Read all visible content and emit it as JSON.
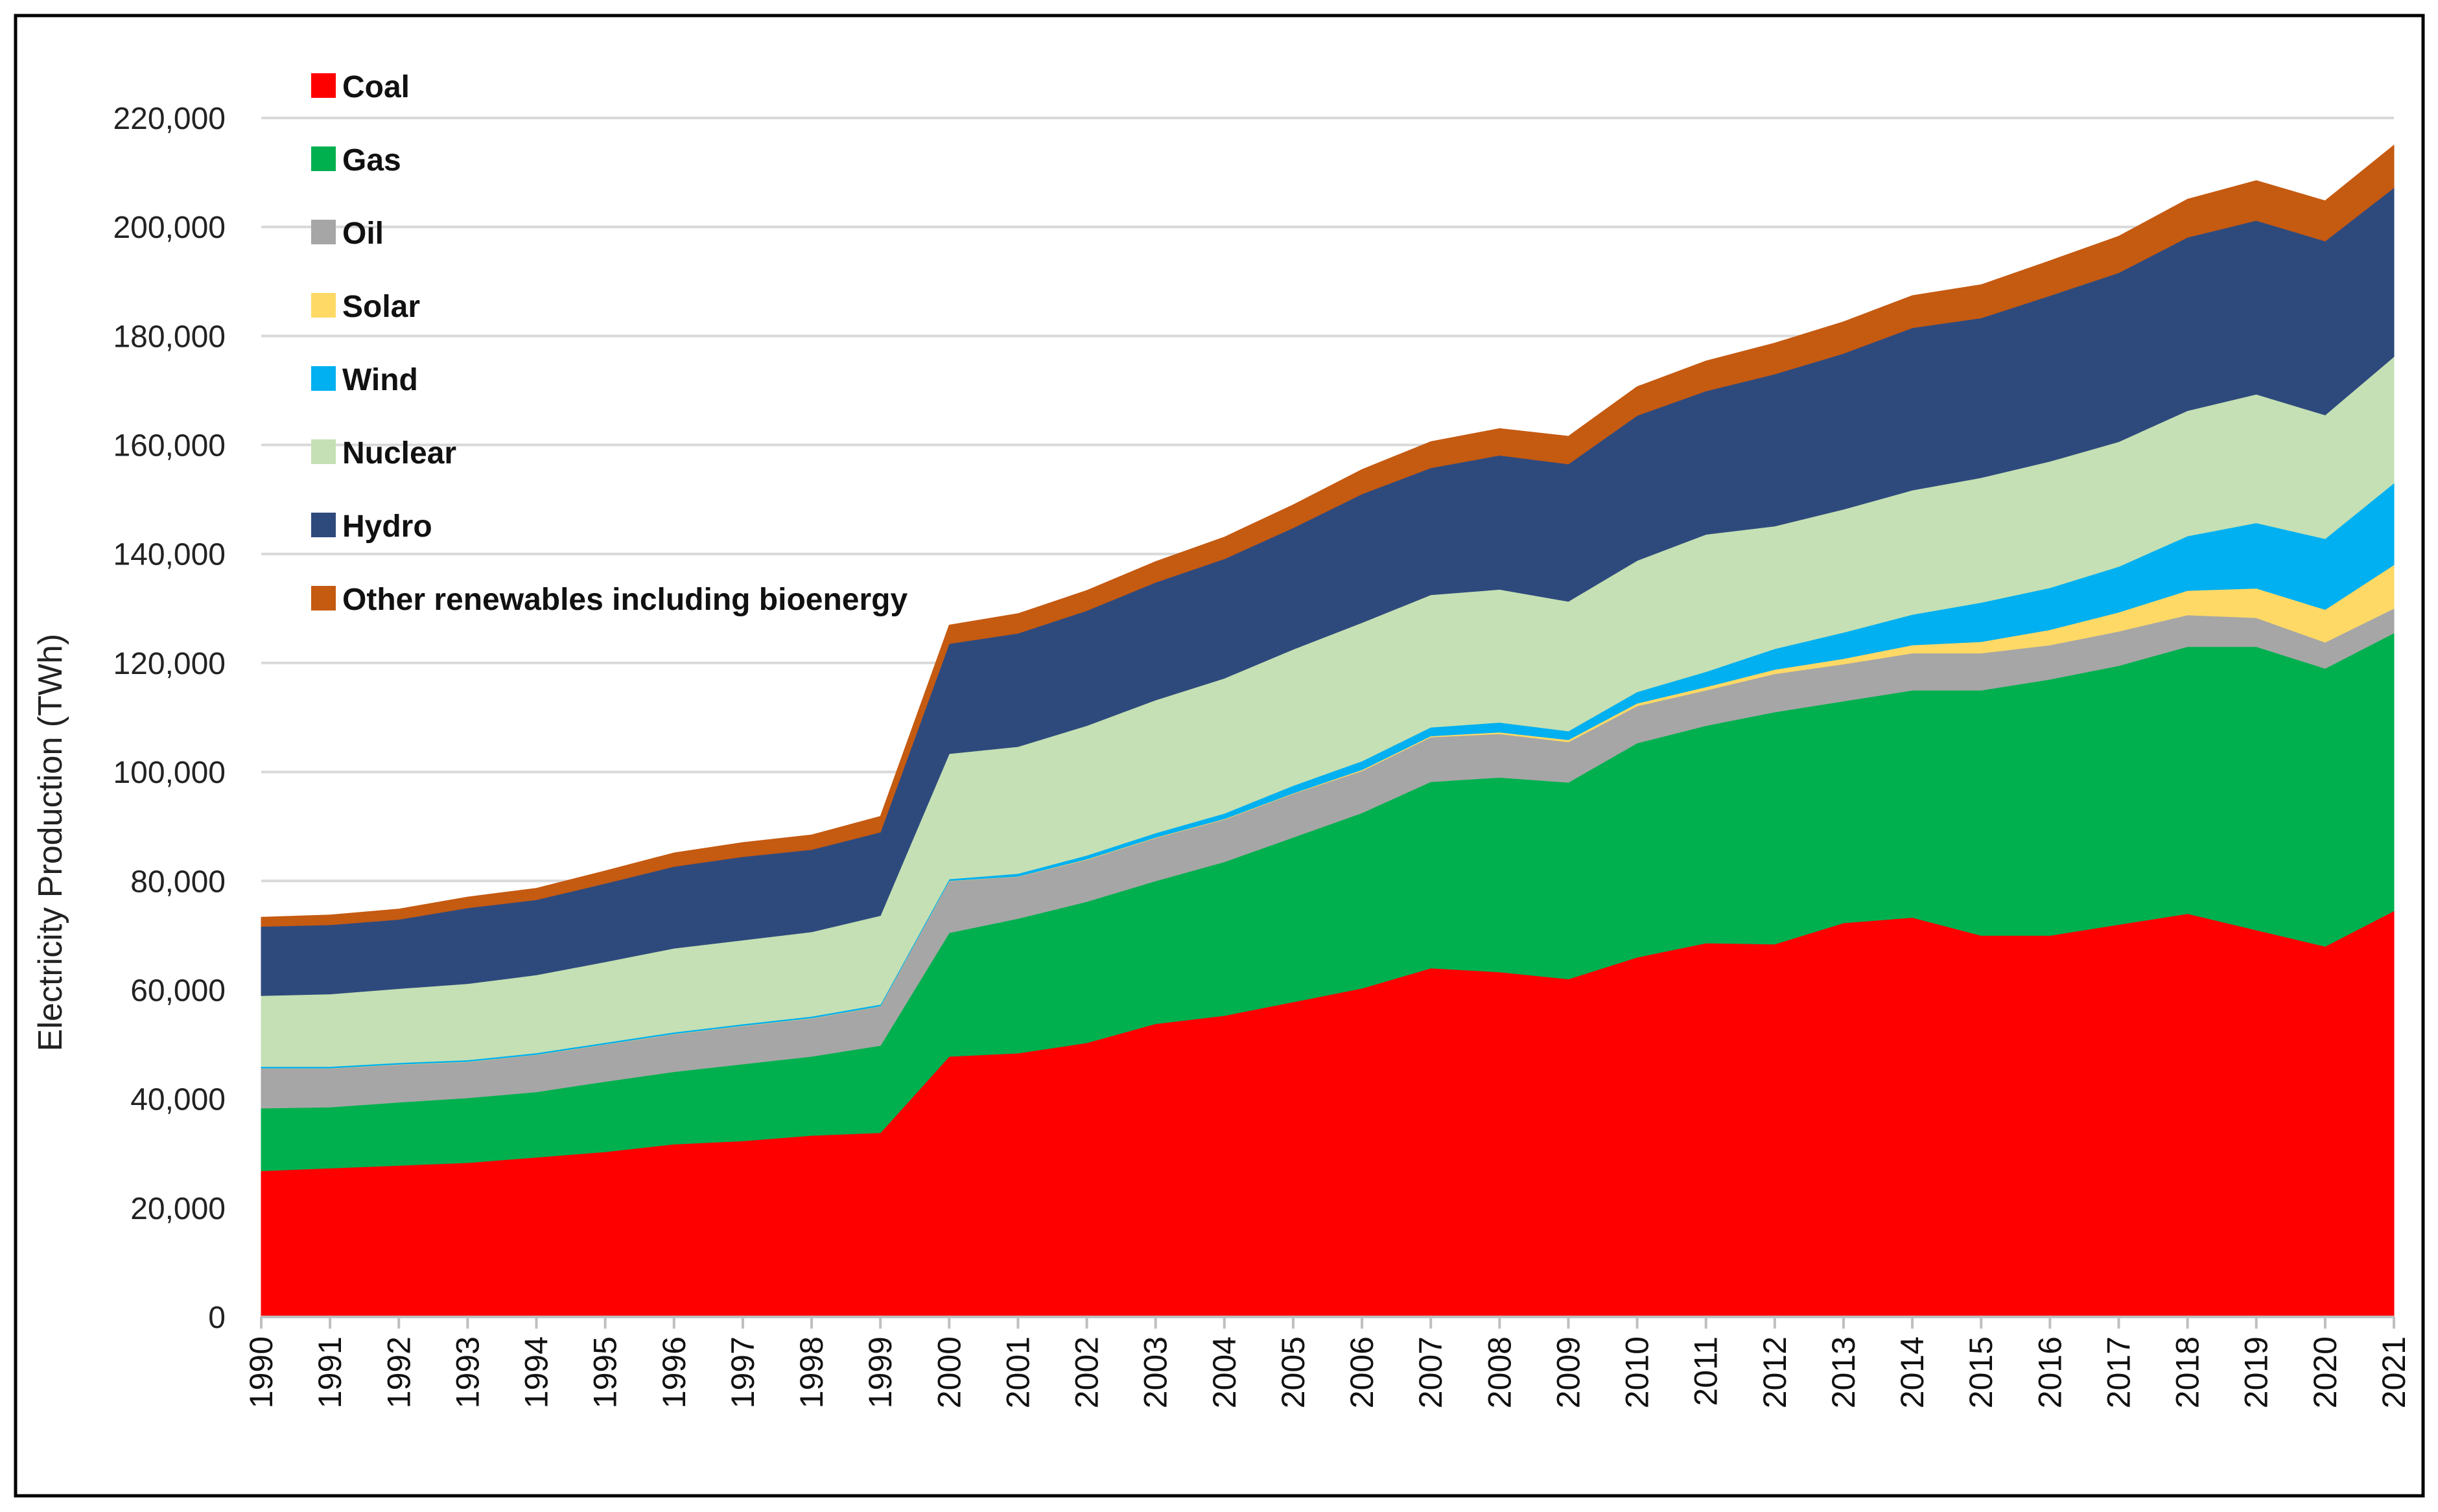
{
  "chart_data": {
    "type": "area",
    "stacked": true,
    "title": "",
    "xlabel": "",
    "ylabel": "Electricity Production (TWh)",
    "ylim": [
      0,
      220000
    ],
    "yticks": [
      0,
      20000,
      40000,
      60000,
      80000,
      100000,
      120000,
      140000,
      160000,
      180000,
      200000,
      220000
    ],
    "ytick_labels": [
      "0",
      "20,000",
      "40,000",
      "60,000",
      "80,000",
      "100,000",
      "120,000",
      "140,000",
      "160,000",
      "180,000",
      "200,000",
      "220,000"
    ],
    "grid": "horizontal",
    "legend_position": "top-left",
    "categories": [
      "1990",
      "1991",
      "1992",
      "1993",
      "1994",
      "1995",
      "1996",
      "1997",
      "1998",
      "1999",
      "2000",
      "2001",
      "2002",
      "2003",
      "2004",
      "2005",
      "2006",
      "2007",
      "2008",
      "2009",
      "2010",
      "2011",
      "2012",
      "2013",
      "2014",
      "2015",
      "2016",
      "2017",
      "2018",
      "2019",
      "2020",
      "2021"
    ],
    "series": [
      {
        "name": "Coal",
        "color": "#ff0000",
        "values": [
          26800,
          27300,
          27800,
          28300,
          29300,
          30300,
          31700,
          32300,
          33300,
          33800,
          47800,
          48400,
          50300,
          53800,
          55300,
          57800,
          60300,
          64000,
          63300,
          62000,
          66000,
          68600,
          68400,
          72300,
          73300,
          70000,
          70000,
          72000,
          74000,
          71000,
          68000,
          74500
        ]
      },
      {
        "name": "Gas",
        "color": "#00b04f",
        "values": [
          11500,
          11200,
          11600,
          11900,
          12000,
          12900,
          13300,
          14100,
          14500,
          16000,
          22700,
          24700,
          25900,
          26200,
          28200,
          30200,
          32200,
          34200,
          35700,
          36100,
          39300,
          39900,
          42600,
          40700,
          41700,
          45000,
          47000,
          47500,
          49000,
          52000,
          51000,
          51000
        ]
      },
      {
        "name": "Oil",
        "color": "#a6a6a6",
        "values": [
          7300,
          7100,
          6900,
          6600,
          6800,
          6800,
          6900,
          7000,
          7000,
          7200,
          9500,
          7700,
          7700,
          7900,
          7800,
          8000,
          7700,
          8200,
          8000,
          7400,
          6800,
          6500,
          7000,
          6800,
          6800,
          6800,
          6300,
          6300,
          5800,
          5300,
          4800,
          4500
        ]
      },
      {
        "name": "Solar",
        "color": "#ffd966",
        "values": [
          50,
          50,
          50,
          50,
          50,
          50,
          50,
          50,
          50,
          50,
          50,
          50,
          100,
          100,
          100,
          100,
          200,
          200,
          300,
          400,
          500,
          600,
          800,
          1000,
          1500,
          2100,
          2800,
          3500,
          4500,
          5400,
          6000,
          8000
        ]
      },
      {
        "name": "Wind",
        "color": "#00b0f0",
        "values": [
          300,
          300,
          300,
          300,
          300,
          300,
          300,
          300,
          300,
          300,
          300,
          500,
          700,
          800,
          1000,
          1400,
          1600,
          1600,
          1800,
          1600,
          2100,
          2800,
          3800,
          4800,
          5600,
          7200,
          7700,
          8400,
          10000,
          12000,
          13000,
          15000
        ]
      },
      {
        "name": "Nuclear",
        "color": "#c5e0b4",
        "values": [
          13000,
          13300,
          13600,
          14000,
          14300,
          14800,
          15400,
          15400,
          15500,
          16300,
          23000,
          23300,
          23800,
          24400,
          24800,
          25000,
          25400,
          24300,
          24400,
          23800,
          24100,
          25200,
          22500,
          22600,
          22800,
          22900,
          23200,
          22900,
          23000,
          23600,
          22700,
          23200
        ]
      },
      {
        "name": "Hydro",
        "color": "#2e4a7d",
        "values": [
          12700,
          12700,
          12700,
          13900,
          13800,
          14400,
          15000,
          15300,
          15100,
          15300,
          20200,
          20800,
          21100,
          21600,
          21900,
          22300,
          23600,
          23300,
          24600,
          25200,
          26600,
          26300,
          27900,
          28600,
          29800,
          29300,
          30400,
          31000,
          31800,
          31900,
          31900,
          31000
        ]
      },
      {
        "name": "Other renewables including bioenergy",
        "color": "#c55a11",
        "values": [
          1700,
          1800,
          1900,
          2000,
          2100,
          2300,
          2500,
          2600,
          2700,
          2900,
          3400,
          3600,
          3700,
          3800,
          4000,
          4200,
          4500,
          4800,
          4900,
          5100,
          5300,
          5500,
          5700,
          5800,
          5900,
          6100,
          6400,
          6700,
          7000,
          7300,
          7400,
          7800
        ]
      }
    ]
  }
}
